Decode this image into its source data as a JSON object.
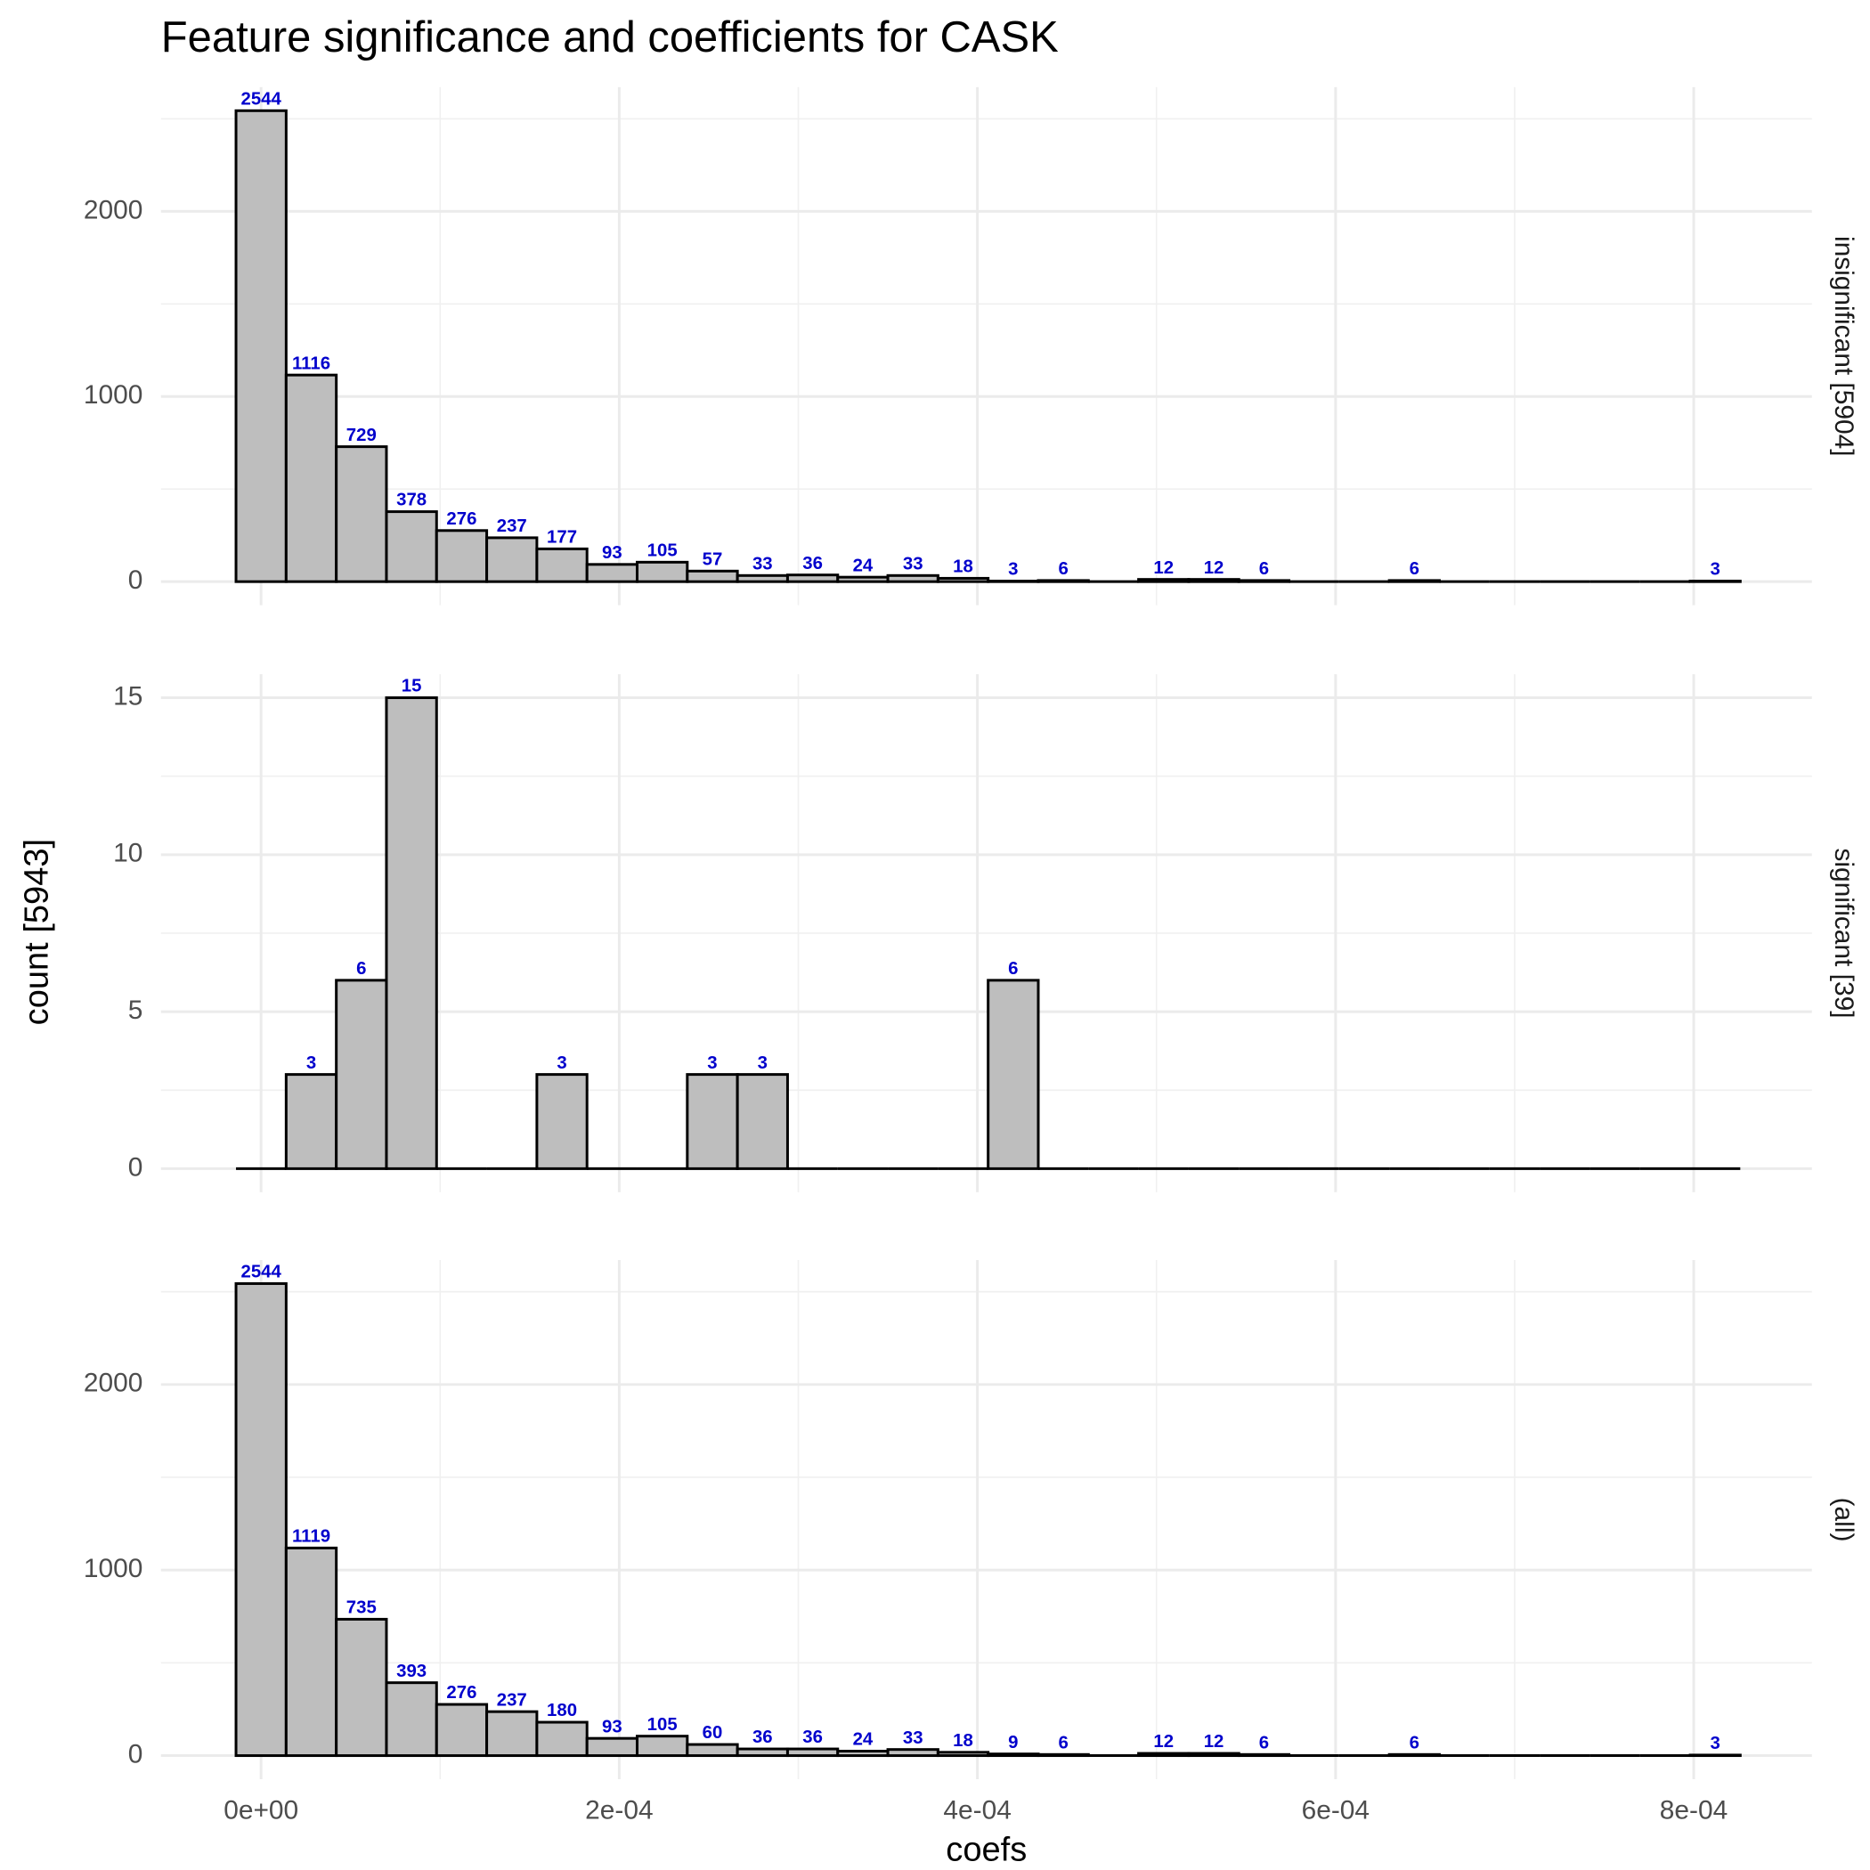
{
  "chart_data": {
    "type": "histogram",
    "title": "Feature significance and coefficients for CASK",
    "xlabel": "coefs",
    "ylabel": "count [5943]",
    "bins": [
      -1.4e-05,
      1.4e-05,
      4.2e-05,
      7e-05,
      9.8e-05,
      0.000126,
      0.000154,
      0.000182,
      0.00021,
      0.000238,
      0.000266,
      0.000294,
      0.000322,
      0.00035,
      0.000378,
      0.000406,
      0.000434,
      0.000462,
      0.00049,
      0.000518,
      0.000546,
      0.000574,
      0.000602,
      0.00063,
      0.000658,
      0.000686,
      0.000714,
      0.000742,
      0.00077,
      0.000798,
      0.000826
    ],
    "xlim": [
      -5.59e-05,
      0.000866
    ],
    "xticks": [
      {
        "value": 0,
        "label": "0e+00"
      },
      {
        "value": 0.0002,
        "label": "2e-04"
      },
      {
        "value": 0.0004,
        "label": "4e-04"
      },
      {
        "value": 0.0006,
        "label": "6e-04"
      },
      {
        "value": 0.0008,
        "label": "8e-04"
      }
    ],
    "minor_xticks": [
      0.0001,
      0.0003,
      0.0005,
      0.0007
    ],
    "color": "#bebebe",
    "edge_color": "#000000",
    "label_color": "#0000cc",
    "grid": true,
    "facets": [
      {
        "strip": "insignificant [5904]",
        "values": [
          2544,
          1116,
          729,
          378,
          276,
          237,
          177,
          93,
          105,
          57,
          33,
          36,
          24,
          33,
          18,
          3,
          6,
          0,
          12,
          12,
          6,
          0,
          0,
          6,
          0,
          0,
          0,
          0,
          0,
          3
        ],
        "ylim": [
          -127.2,
          2671.2
        ],
        "yticks": [
          0,
          1000,
          2000
        ],
        "minor_yticks": [
          500,
          1500,
          2500
        ]
      },
      {
        "strip": "significant [39]",
        "values": [
          0,
          3,
          6,
          15,
          0,
          0,
          3,
          0,
          0,
          3,
          3,
          0,
          0,
          0,
          0,
          6,
          0,
          0,
          0,
          0,
          0,
          0,
          0,
          0,
          0,
          0,
          0,
          0,
          0,
          0
        ],
        "ylim": [
          -0.75,
          15.75
        ],
        "yticks": [
          0,
          5,
          10,
          15
        ],
        "minor_yticks": [
          2.5,
          7.5,
          12.5
        ]
      },
      {
        "strip": "(all)",
        "values": [
          2544,
          1119,
          735,
          393,
          276,
          237,
          180,
          93,
          105,
          60,
          36,
          36,
          24,
          33,
          18,
          9,
          6,
          0,
          12,
          12,
          6,
          0,
          0,
          6,
          0,
          0,
          0,
          0,
          0,
          3
        ],
        "ylim": [
          -127.2,
          2671.2
        ],
        "yticks": [
          0,
          1000,
          2000
        ],
        "minor_yticks": [
          500,
          1500,
          2500
        ]
      }
    ]
  }
}
